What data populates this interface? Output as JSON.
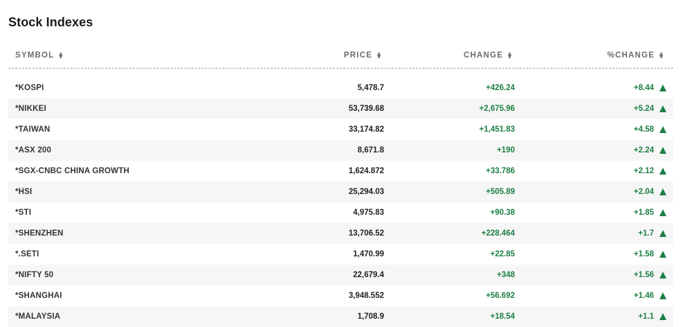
{
  "page": {
    "title": "Stock Indexes"
  },
  "columns": {
    "symbol": "SYMBOL",
    "price": "PRICE",
    "change": "CHANGE",
    "pct_change": "%CHANGE",
    "sort_icon": "sort-arrows-icon"
  },
  "colors": {
    "positive": "#1b7f44",
    "header_text": "#6b6b6b"
  },
  "rows": [
    {
      "symbol": "*KOSPI",
      "price": "5,478.7",
      "change": "+426.24",
      "pct_change": "+8.44",
      "direction_icon": "up-triangle-icon"
    },
    {
      "symbol": "*NIKKEI",
      "price": "53,739.68",
      "change": "+2,675.96",
      "pct_change": "+5.24",
      "direction_icon": "up-triangle-icon"
    },
    {
      "symbol": "*TAIWAN",
      "price": "33,174.82",
      "change": "+1,451.83",
      "pct_change": "+4.58",
      "direction_icon": "up-triangle-icon"
    },
    {
      "symbol": "*ASX 200",
      "price": "8,671.8",
      "change": "+190",
      "pct_change": "+2.24",
      "direction_icon": "up-triangle-icon"
    },
    {
      "symbol": "*SGX-CNBC CHINA GROWTH",
      "price": "1,624.872",
      "change": "+33.786",
      "pct_change": "+2.12",
      "direction_icon": "up-triangle-icon"
    },
    {
      "symbol": "*HSI",
      "price": "25,294.03",
      "change": "+505.89",
      "pct_change": "+2.04",
      "direction_icon": "up-triangle-icon"
    },
    {
      "symbol": "*STI",
      "price": "4,975.83",
      "change": "+90.38",
      "pct_change": "+1.85",
      "direction_icon": "up-triangle-icon"
    },
    {
      "symbol": "*SHENZHEN",
      "price": "13,706.52",
      "change": "+228.464",
      "pct_change": "+1.7",
      "direction_icon": "up-triangle-icon"
    },
    {
      "symbol": "*.SETI",
      "price": "1,470.99",
      "change": "+22.85",
      "pct_change": "+1.58",
      "direction_icon": "up-triangle-icon"
    },
    {
      "symbol": "*NIFTY 50",
      "price": "22,679.4",
      "change": "+348",
      "pct_change": "+1.56",
      "direction_icon": "up-triangle-icon"
    },
    {
      "symbol": "*SHANGHAI",
      "price": "3,948.552",
      "change": "+56.692",
      "pct_change": "+1.46",
      "direction_icon": "up-triangle-icon"
    },
    {
      "symbol": "*MALAYSIA",
      "price": "1,708.9",
      "change": "+18.54",
      "pct_change": "+1.1",
      "direction_icon": "up-triangle-icon"
    }
  ]
}
